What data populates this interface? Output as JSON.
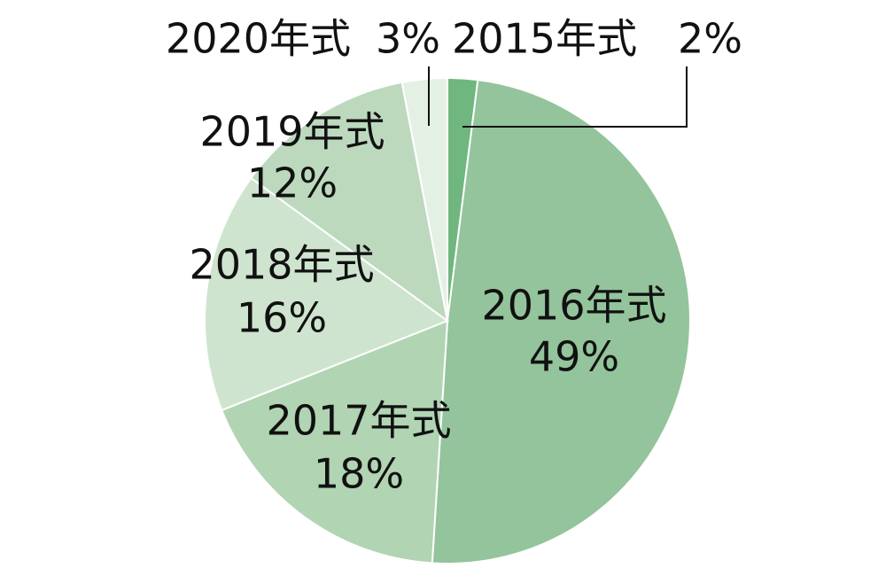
{
  "chart_data": {
    "type": "pie",
    "categories": [
      "2015年式",
      "2016年式",
      "2017年式",
      "2018年式",
      "2019年式",
      "2020年式"
    ],
    "values": [
      2,
      49,
      18,
      16,
      12,
      3
    ],
    "value_labels": [
      "2%",
      "49%",
      "18%",
      "16%",
      "12%",
      "3%"
    ],
    "colors": [
      "#6fb67f",
      "#93c49b",
      "#b1d4b3",
      "#cfe4cf",
      "#bcd9be",
      "#e5f0e5"
    ]
  }
}
